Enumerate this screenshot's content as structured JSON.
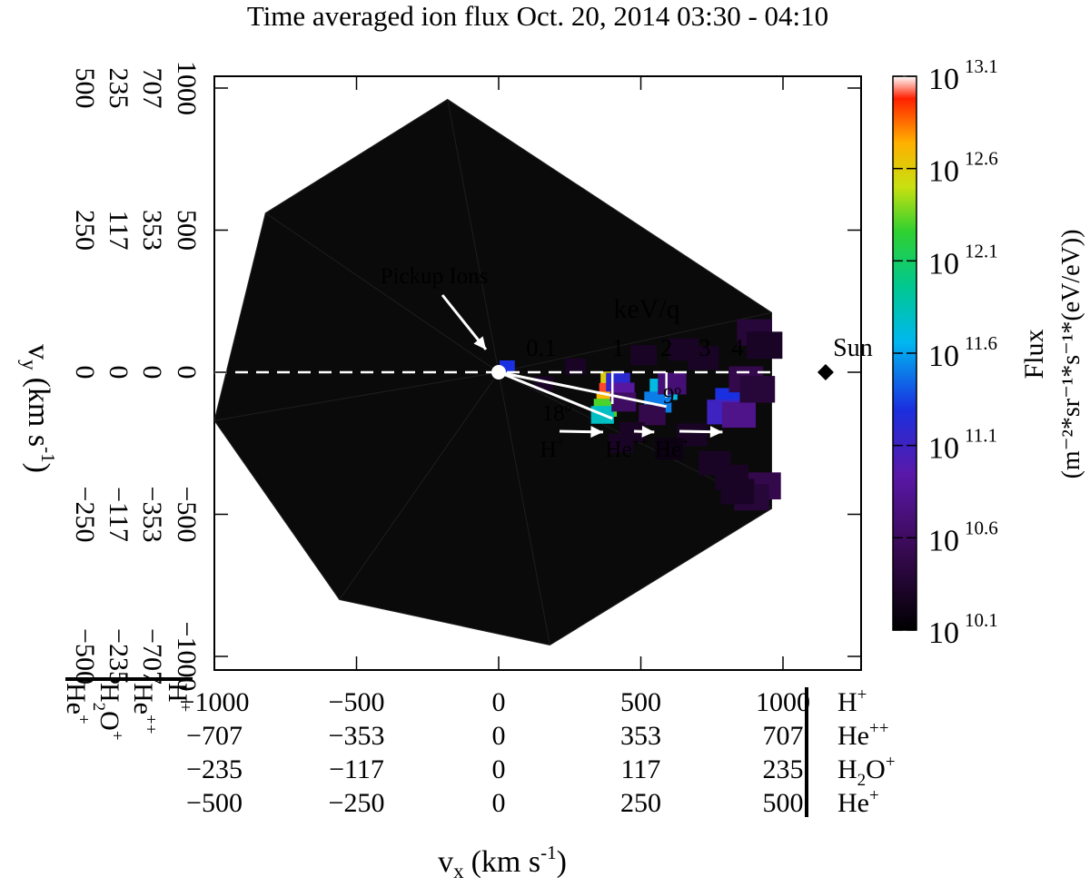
{
  "title": "Time averaged ion flux Oct. 20, 2014 03:30 - 04:10",
  "chart_data": {
    "type": "heatmap",
    "title": "Time averaged ion flux Oct. 20, 2014 03:30 - 04:10",
    "xlabel": "v",
    "xlabel_sub": "x",
    "xlabel_unit": "(km s",
    "xlabel_unit_sup": "-1",
    "xlabel_unit_end": ")",
    "ylabel": "v",
    "ylabel_sub": "y",
    "ylabel_unit": "(km s",
    "ylabel_unit_sup": "-1",
    "ylabel_unit_end": ")",
    "xlim": [
      -1100,
      1300
    ],
    "ylim": [
      -1100,
      1100
    ],
    "grid": false,
    "species": [
      {
        "name": "H",
        "sup": "+",
        "sub": "",
        "tail": ""
      },
      {
        "name": "He",
        "sup": "++",
        "sub": "",
        "tail": ""
      },
      {
        "name": "H",
        "sup": "",
        "sub": "2",
        "tail": "O",
        "tail_sup": "+"
      },
      {
        "name": "He",
        "sup": "+",
        "sub": "",
        "tail": ""
      }
    ],
    "x_ticks_hplus": [
      -1000,
      -500,
      0,
      500,
      1000
    ],
    "x_tick_rows": [
      [
        "−1000",
        "−500",
        "0",
        "500",
        "1000"
      ],
      [
        "−707",
        "−353",
        "0",
        "353",
        "707"
      ],
      [
        "−235",
        "−117",
        "0",
        "117",
        "235"
      ],
      [
        "−500",
        "−250",
        "0",
        "250",
        "500"
      ]
    ],
    "y_ticks_hplus": [
      1000,
      500,
      0,
      -500,
      -1000
    ],
    "y_tick_rows": [
      [
        "1000",
        "500",
        "0",
        "−500",
        "−1000"
      ],
      [
        "707",
        "353",
        "0",
        "−353",
        "−707"
      ],
      [
        "235",
        "117",
        "0",
        "−117",
        "−235"
      ],
      [
        "500",
        "250",
        "0",
        "−250",
        "−500"
      ]
    ],
    "colorbar": {
      "label": "Flux",
      "unit": "(m",
      "unit_full": "(m⁻²*sr⁻¹*s⁻¹*(eV/eV))",
      "range_log": [
        10.1,
        13.1
      ],
      "ticks": [
        {
          "base": "10",
          "exp": "13.1",
          "value": 13.1
        },
        {
          "base": "10",
          "exp": "12.6",
          "value": 12.6
        },
        {
          "base": "10",
          "exp": "12.1",
          "value": 12.1
        },
        {
          "base": "10",
          "exp": "11.6",
          "value": 11.6
        },
        {
          "base": "10",
          "exp": "11.1",
          "value": 11.1
        },
        {
          "base": "10",
          "exp": "10.6",
          "value": 10.6
        },
        {
          "base": "10",
          "exp": "10.1",
          "value": 10.1
        }
      ]
    },
    "energy_scale": {
      "title": "keV/q",
      "labels": [
        {
          "text": "0.1",
          "vx": 150
        },
        {
          "text": "1",
          "vx": 420
        },
        {
          "text": "2",
          "vx": 590
        },
        {
          "text": "3",
          "vx": 725
        },
        {
          "text": "4",
          "vx": 840
        }
      ]
    },
    "sun": {
      "label": "Sun",
      "vx": 1150,
      "vy": 0
    },
    "annotations": {
      "pickup": "Pickup Ions",
      "angle_18": "18º",
      "angle_9": "9º",
      "peaks": [
        {
          "label": "H",
          "sup": "+",
          "vx": 380,
          "vy": -185
        },
        {
          "label": "He",
          "sup": "++",
          "vx": 560,
          "vy": -185
        },
        {
          "label": "He",
          "sup": "+",
          "vx": 800,
          "vy": -185
        }
      ]
    },
    "field_of_view_vertices": [
      [
        960,
        210
      ],
      [
        -180,
        960
      ],
      [
        -820,
        560
      ],
      [
        -1000,
        -170
      ],
      [
        -560,
        -800
      ],
      [
        180,
        -960
      ],
      [
        960,
        -480
      ]
    ],
    "cells": [
      {
        "vx": 30,
        "vy": 20,
        "log_flux": 11.3
      },
      {
        "vx": 400,
        "vy": -30,
        "log_flux": 12.6
      },
      {
        "vx": 395,
        "vy": -70,
        "log_flux": 13.0
      },
      {
        "vx": 385,
        "vy": -100,
        "log_flux": 12.7
      },
      {
        "vx": 375,
        "vy": -125,
        "log_flux": 12.3
      },
      {
        "vx": 365,
        "vy": -150,
        "log_flux": 11.8
      },
      {
        "vx": 420,
        "vy": -35,
        "log_flux": 11.2
      },
      {
        "vx": 435,
        "vy": -70,
        "log_flux": 10.9
      },
      {
        "vx": 440,
        "vy": -105,
        "log_flux": 10.6
      },
      {
        "vx": 580,
        "vy": -60,
        "log_flux": 11.7
      },
      {
        "vx": 560,
        "vy": -105,
        "log_flux": 11.5
      },
      {
        "vx": 610,
        "vy": -40,
        "log_flux": 10.7
      },
      {
        "vx": 540,
        "vy": -150,
        "log_flux": 10.5
      },
      {
        "vx": 820,
        "vy": -100,
        "log_flux": 11.3
      },
      {
        "vx": 790,
        "vy": -140,
        "log_flux": 11.1
      },
      {
        "vx": 845,
        "vy": -150,
        "log_flux": 10.8
      },
      {
        "vx": 900,
        "vy": 140,
        "log_flux": 10.4
      },
      {
        "vx": 935,
        "vy": 95,
        "log_flux": 10.3
      },
      {
        "vx": 870,
        "vy": -25,
        "log_flux": 10.5
      },
      {
        "vx": 910,
        "vy": -60,
        "log_flux": 10.4
      },
      {
        "vx": 930,
        "vy": -400,
        "log_flux": 10.5
      },
      {
        "vx": 890,
        "vy": -440,
        "log_flux": 10.4
      },
      {
        "vx": 840,
        "vy": -420,
        "log_flux": 10.3
      },
      {
        "vx": 820,
        "vy": -370,
        "log_flux": 10.3
      },
      {
        "vx": 760,
        "vy": -320,
        "log_flux": 10.3
      },
      {
        "vx": 680,
        "vy": -220,
        "log_flux": 10.3
      },
      {
        "vx": 650,
        "vy": 80,
        "log_flux": 10.3
      },
      {
        "vx": 510,
        "vy": 60,
        "log_flux": 10.3
      },
      {
        "vx": 470,
        "vy": -210,
        "log_flux": 10.3
      },
      {
        "vx": 430,
        "vy": -250,
        "log_flux": 10.3
      },
      {
        "vx": 270,
        "vy": 20,
        "log_flux": 10.3
      },
      {
        "vx": 160,
        "vy": -40,
        "log_flux": 10.3
      },
      {
        "vx": 600,
        "vy": -270,
        "log_flux": 10.2
      },
      {
        "vx": 720,
        "vy": 50,
        "log_flux": 10.3
      }
    ]
  }
}
